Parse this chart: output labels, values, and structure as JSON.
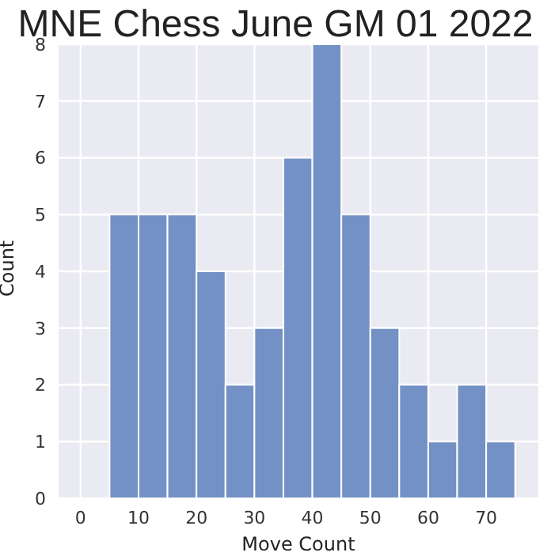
{
  "chart_data": {
    "type": "histogram",
    "title": "MNE Chess June GM 01 2022",
    "xlabel": "Move Count",
    "ylabel": "Count",
    "bins": [
      5,
      10,
      15,
      20,
      25,
      30,
      35,
      40,
      45,
      50,
      55,
      60,
      65,
      70,
      75
    ],
    "values": [
      5,
      5,
      5,
      4,
      2,
      3,
      6,
      8,
      5,
      3,
      2,
      1,
      2,
      1
    ],
    "color": "#7391c4",
    "xlim": [
      -3.8,
      79
    ],
    "xticks": [
      0,
      10,
      20,
      30,
      40,
      50,
      60,
      70
    ],
    "ylim": [
      0,
      8
    ],
    "yticks": [
      0,
      1,
      2,
      3,
      4,
      5,
      6,
      7,
      8
    ],
    "grid": true
  }
}
